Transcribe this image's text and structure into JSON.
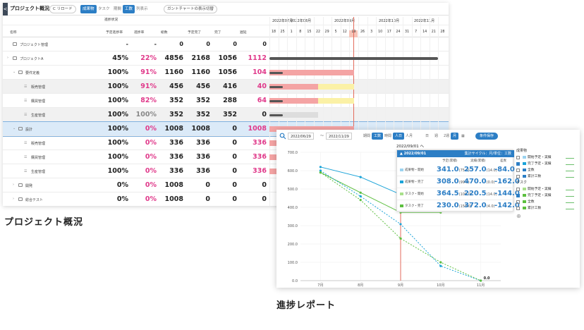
{
  "panel1": {
    "back_label": "<",
    "title": "プロジェクト概況",
    "reload_label": "C リロード",
    "tabs": [
      {
        "label": "成果物",
        "active": true
      },
      {
        "label": "タスク",
        "active": false
      },
      {
        "label": "期間",
        "active": false
      },
      {
        "label": "工数",
        "active": true
      },
      {
        "label": "列表示",
        "active": false
      }
    ],
    "gantt_toggle": "ガントチャートの表示切替",
    "section_header": "進捗状況",
    "columns": [
      "名称",
      "予定進捗率",
      "進捗率",
      "総数",
      "予定完了",
      "完了",
      "遅延"
    ],
    "months": [
      "2022年07月",
      "2022年08月",
      "2022年09月",
      "2022年10月",
      "2022年11月"
    ],
    "days": [
      "18",
      "25",
      "1",
      "8",
      "15",
      "22",
      "29",
      "5",
      "12",
      "19",
      "26",
      "3",
      "10",
      "17",
      "24",
      "31",
      "7",
      "14",
      "21",
      "28"
    ],
    "today_day": "19",
    "rows": [
      {
        "name": "プロジェクト管理",
        "plan": "-",
        "rate": "-",
        "total": "0",
        "planned_done": "0",
        "done": "0",
        "delay": "0",
        "rate_color": "dark"
      },
      {
        "name": "プロジェクトA",
        "plan": "45%",
        "rate": "22%",
        "total": "4856",
        "planned_done": "2168",
        "done": "1056",
        "delay": "1112",
        "rate_color": "pink"
      },
      {
        "name": "要件定義",
        "plan": "100%",
        "rate": "91%",
        "total": "1160",
        "planned_done": "1160",
        "done": "1056",
        "delay": "104",
        "rate_color": "pink"
      },
      {
        "name": "販売管理",
        "plan": "100%",
        "rate": "91%",
        "total": "456",
        "planned_done": "456",
        "done": "416",
        "delay": "40",
        "rate_color": "pink"
      },
      {
        "name": "購買管理",
        "plan": "100%",
        "rate": "82%",
        "total": "352",
        "planned_done": "352",
        "done": "288",
        "delay": "64",
        "rate_color": "pink"
      },
      {
        "name": "生産管理",
        "plan": "100%",
        "rate": "100%",
        "total": "352",
        "planned_done": "352",
        "done": "352",
        "delay": "0",
        "rate_color": "gray"
      },
      {
        "name": "設計",
        "plan": "100%",
        "rate": "0%",
        "total": "1008",
        "planned_done": "1008",
        "done": "0",
        "delay": "1008",
        "rate_color": "pink"
      },
      {
        "name": "販売管理",
        "plan": "100%",
        "rate": "0%",
        "total": "336",
        "planned_done": "336",
        "done": "0",
        "delay": "336",
        "rate_color": "pink"
      },
      {
        "name": "購買管理",
        "plan": "100%",
        "rate": "0%",
        "total": "336",
        "planned_done": "336",
        "done": "0",
        "delay": "336",
        "rate_color": "pink"
      },
      {
        "name": "生産管理",
        "plan": "100%",
        "rate": "0%",
        "total": "336",
        "planned_done": "336",
        "done": "0",
        "delay": "336",
        "rate_color": "pink"
      },
      {
        "name": "開発",
        "plan": "0%",
        "rate": "0%",
        "total": "1008",
        "planned_done": "0",
        "done": "0",
        "delay": "0",
        "rate_color": "pink"
      },
      {
        "name": "総合テスト",
        "plan": "0%",
        "rate": "0%",
        "total": "1008",
        "planned_done": "0",
        "done": "0",
        "delay": "0",
        "rate_color": "pink"
      }
    ]
  },
  "caption1": "プロジェクト概況",
  "panel2": {
    "search_icon": "search-icon",
    "date_from": "2022/06/29",
    "date_to": "2022/11/29",
    "range_sep": "〜",
    "unit_tabs": [
      {
        "label": "期間",
        "active": false
      },
      {
        "label": "工数",
        "active": true
      },
      {
        "label": "時間",
        "active": false
      },
      {
        "label": "人日",
        "active": true
      },
      {
        "label": "人月",
        "active": false
      }
    ],
    "period_tabs": [
      {
        "label": "日",
        "active": false
      },
      {
        "label": "週",
        "active": false
      },
      {
        "label": "2週",
        "active": false
      },
      {
        "label": "月",
        "active": true
      }
    ],
    "save_label": "条件保存",
    "date_label": "2022/09/01 へ",
    "popup": {
      "header": "▲ 2022/09/01",
      "header_right": "集計サイクル：月/単位：工数",
      "col_plan": "予定(累積)",
      "col_actual": "実績(累積)",
      "col_diff": "差異",
      "rows": [
        {
          "label": "成果物・開始",
          "color": "#9bd3f0",
          "plan": "341.0",
          "plan_sub": "(75.0)",
          "actual": "257.0",
          "actual_sub": "(14.0)",
          "diff": "-84.0"
        },
        {
          "label": "成果物・完了",
          "color": "#1aa3d8",
          "plan": "308.0",
          "plan_sub": "(99.0)",
          "actual": "470.0",
          "actual_sub": "(0.0)",
          "diff": "-162.0"
        },
        {
          "label": "タスク・開始",
          "color": "#a8e08a",
          "plan": "364.5",
          "plan_sub": "(108.0)",
          "actual": "220.5",
          "actual_sub": "(14.0)",
          "diff": "-144.0"
        },
        {
          "label": "タスク・完了",
          "color": "#5cbf3f",
          "plan": "230.0",
          "plan_sub": "(158.0)",
          "actual": "372.0",
          "actual_sub": "(4.0)",
          "diff": "-142.0"
        }
      ]
    },
    "legend": {
      "group1": "成果物",
      "group2": "タスク",
      "items1": [
        {
          "label": "開始予定・実績",
          "color": "#9bd3f0",
          "checked": false
        },
        {
          "label": "完了予定・実績",
          "color": "#1aa3d8",
          "checked": true
        },
        {
          "label": "全数",
          "color": "#2c7ec5",
          "checked": false
        },
        {
          "label": "累計工数",
          "color": "#2c7ec5",
          "checked": false
        }
      ],
      "items2": [
        {
          "label": "開始予定・実績",
          "color": "#a8e08a",
          "checked": false
        },
        {
          "label": "完了予定・実績",
          "color": "#5cbf3f",
          "checked": true
        },
        {
          "label": "全数",
          "color": "#5cbf3f",
          "checked": false
        },
        {
          "label": "累計工数",
          "color": "#5cbf3f",
          "checked": false
        }
      ],
      "add_icon": "plus-icon"
    }
  },
  "caption2": "進捗レポート",
  "chart_data": {
    "type": "line",
    "x": [
      "7月",
      "8月",
      "9月",
      "10月",
      "11月"
    ],
    "ylim": [
      0,
      700
    ],
    "yticks": [
      "0.0",
      "100.0",
      "200.0",
      "300.0",
      "400.0",
      "500.0",
      "600.0",
      "700.0"
    ],
    "today_x": "9月",
    "series": [
      {
        "color": "#1aa3d8",
        "dashed": false,
        "values": [
          620,
          565,
          470,
          470,
          null
        ]
      },
      {
        "color": "#5cbf3f",
        "dashed": false,
        "values": [
          590,
          480,
          372,
          372,
          null
        ]
      },
      {
        "color": "#1aa3d8",
        "dashed": true,
        "values": [
          600,
          460,
          308,
          80,
          0
        ]
      },
      {
        "color": "#5cbf3f",
        "dashed": true,
        "values": [
          590,
          440,
          230,
          100,
          0
        ]
      }
    ],
    "end_label": "0.0"
  }
}
